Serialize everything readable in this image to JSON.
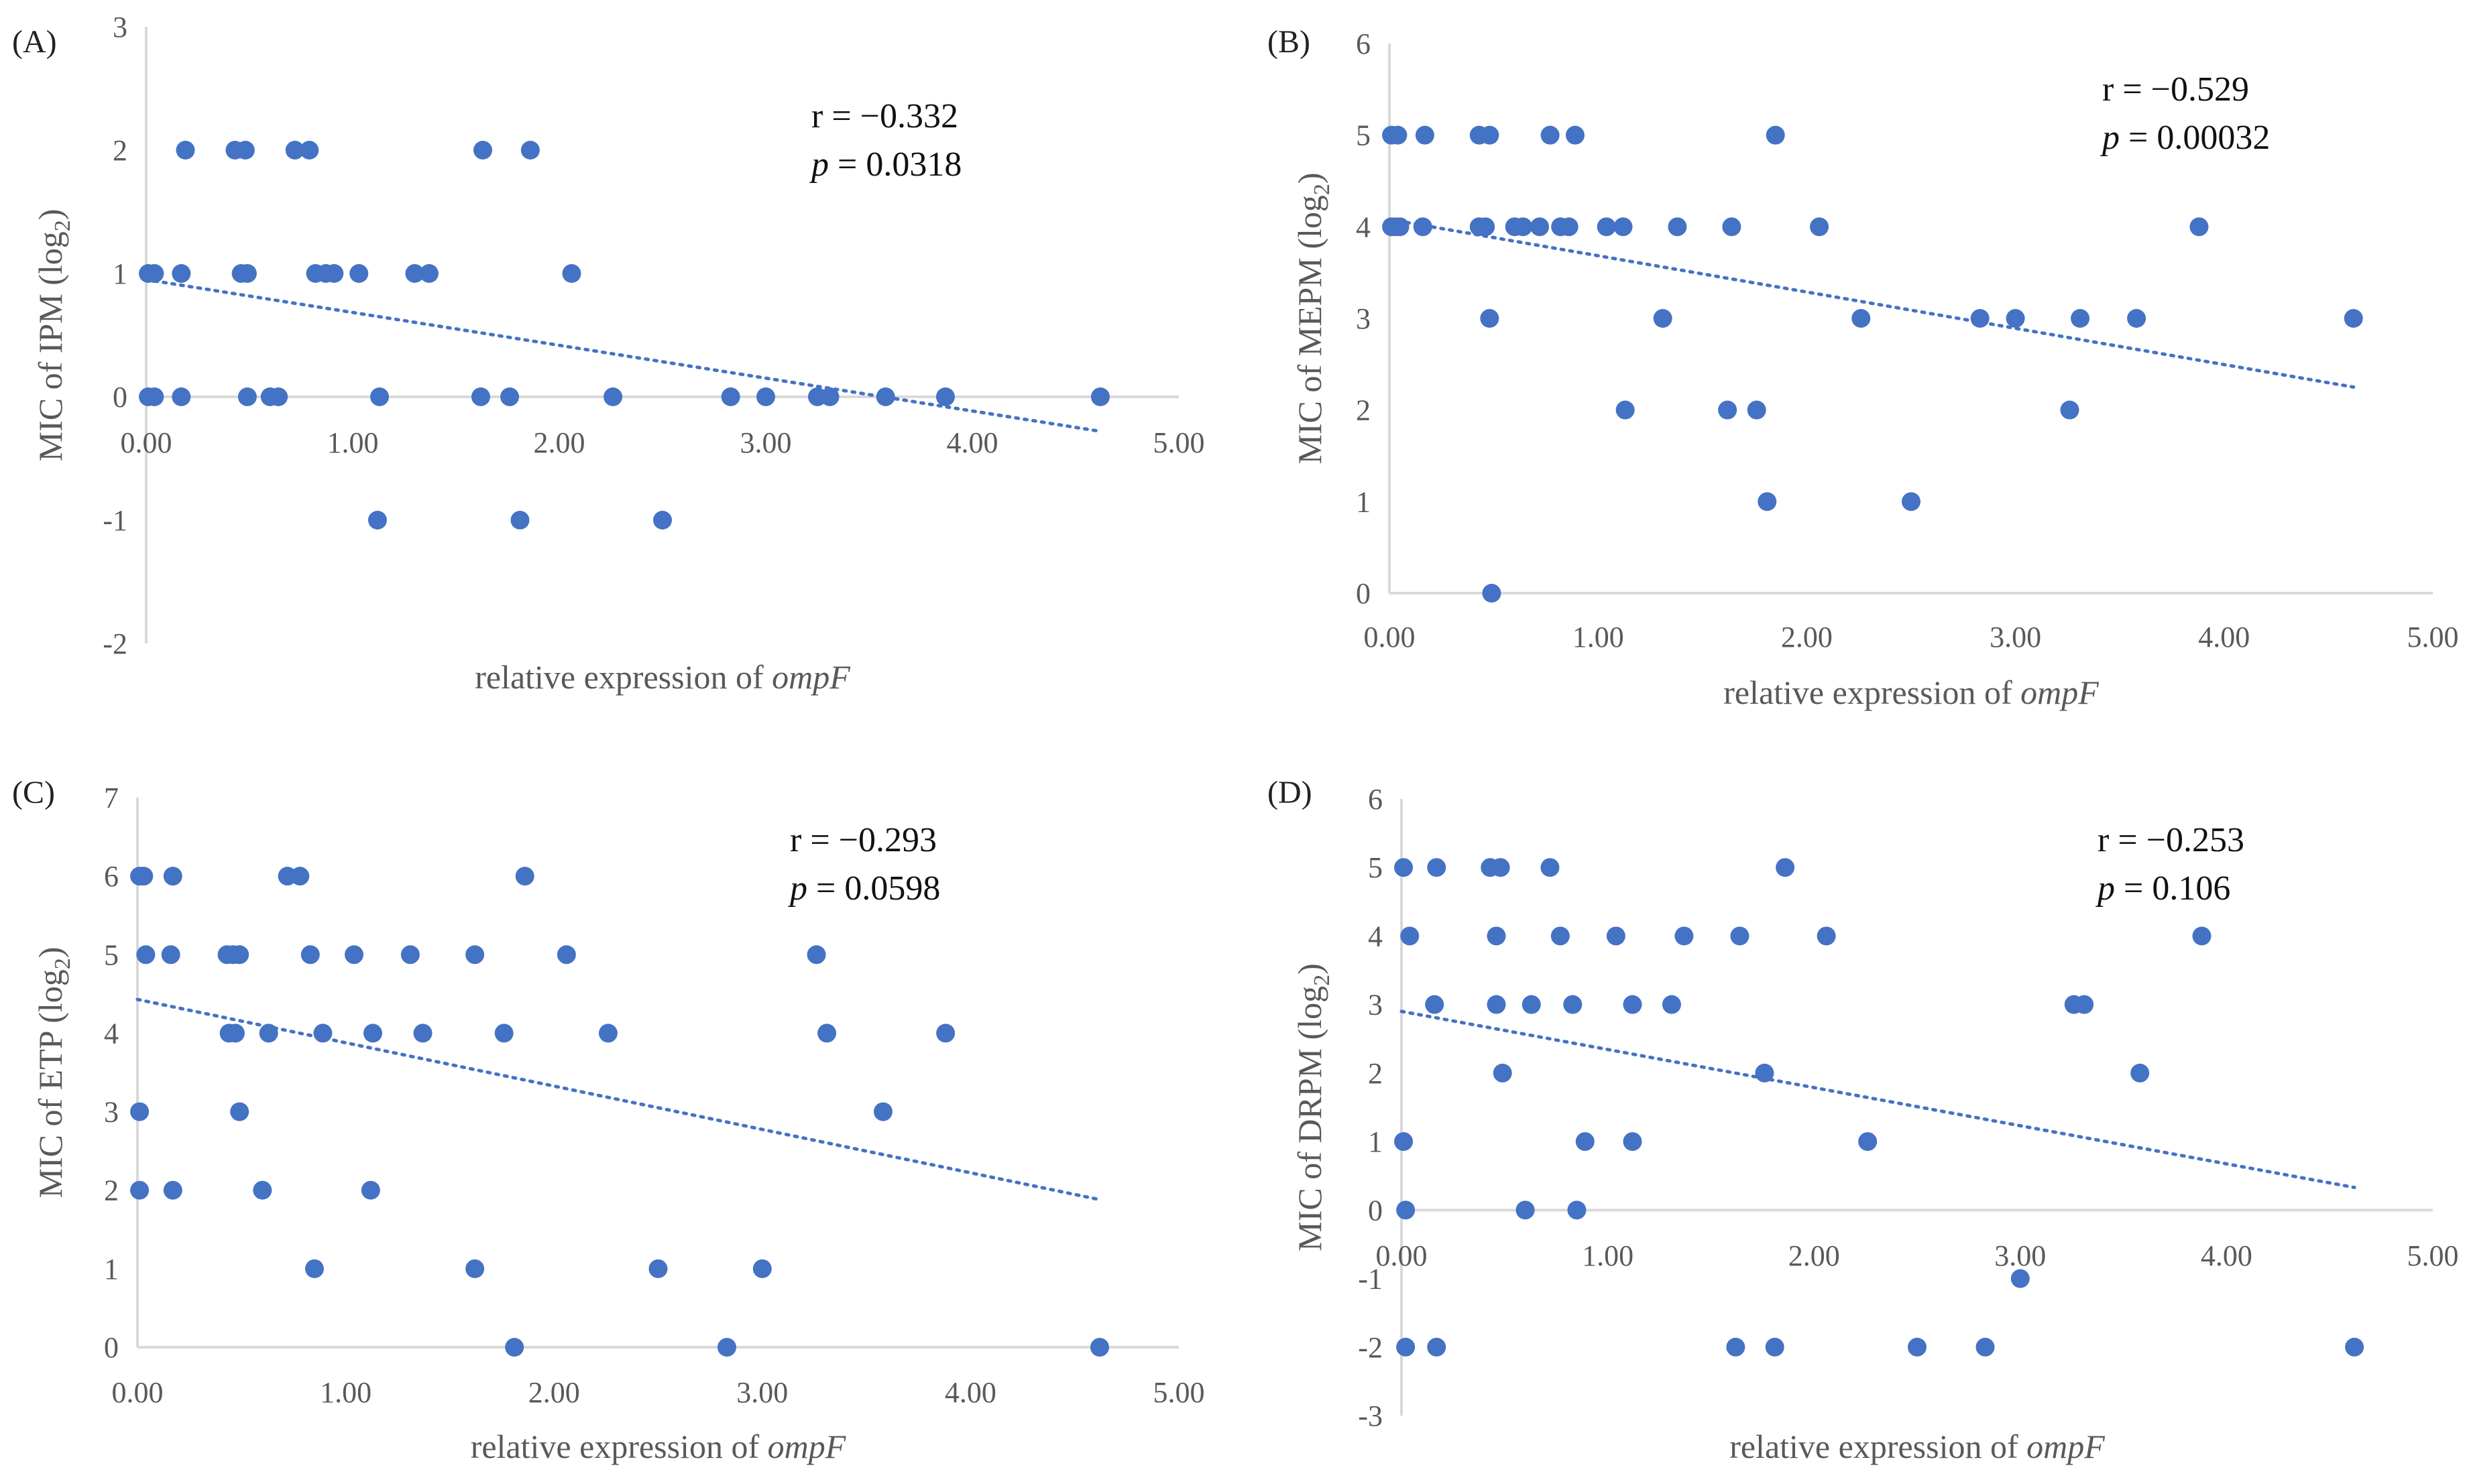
{
  "figure": {
    "colors": {
      "marker": "#4472c4",
      "trendline": "#4472c4",
      "axis": "#d9d9d9"
    }
  },
  "chart_data": [
    {
      "type": "scatter",
      "panel_label": "(A)",
      "xlabel_prefix": "relative expression of ",
      "xlabel_gene": "ompF",
      "ylabel_prefix": "MIC of IPM (log",
      "ylabel_sub": "2",
      "ylabel_suffix": ")",
      "xlim": [
        0,
        5
      ],
      "ylim": [
        -2,
        3
      ],
      "x_tick_labels": [
        "0.00",
        "1.00",
        "2.00",
        "3.00",
        "4.00",
        "5.00"
      ],
      "y_tick_labels": [
        "-2",
        "-1",
        "0",
        "1",
        "2",
        "3"
      ],
      "x_ticks": [
        0,
        1,
        2,
        3,
        4,
        5
      ],
      "y_ticks": [
        -2,
        -1,
        0,
        1,
        2,
        3
      ],
      "x_axis_crossing": 0,
      "r_prefix": "r = ",
      "r_value": "−0.332",
      "p_prefix": "p",
      "p_value": " = 0.0318",
      "trendline": {
        "x": [
          0,
          4.62
        ],
        "y": [
          0.95,
          -0.28
        ]
      },
      "points": [
        [
          0.01,
          1
        ],
        [
          0.04,
          1
        ],
        [
          0.17,
          1
        ],
        [
          0.46,
          1
        ],
        [
          0.49,
          1
        ],
        [
          0.82,
          1
        ],
        [
          0.87,
          1
        ],
        [
          0.91,
          1
        ],
        [
          1.03,
          1
        ],
        [
          1.3,
          1
        ],
        [
          1.37,
          1
        ],
        [
          2.06,
          1
        ],
        [
          0.19,
          2
        ],
        [
          0.43,
          2
        ],
        [
          0.48,
          2
        ],
        [
          0.72,
          2
        ],
        [
          0.79,
          2
        ],
        [
          1.63,
          2
        ],
        [
          1.86,
          2
        ],
        [
          0.01,
          0
        ],
        [
          0.04,
          0
        ],
        [
          0.17,
          0
        ],
        [
          0.49,
          0
        ],
        [
          0.6,
          0
        ],
        [
          0.64,
          0
        ],
        [
          1.13,
          0
        ],
        [
          1.62,
          0
        ],
        [
          1.76,
          0
        ],
        [
          2.26,
          0
        ],
        [
          2.83,
          0
        ],
        [
          3.0,
          0
        ],
        [
          3.25,
          0
        ],
        [
          3.31,
          0
        ],
        [
          3.58,
          0
        ],
        [
          3.87,
          0
        ],
        [
          4.62,
          0
        ],
        [
          1.12,
          -1
        ],
        [
          1.81,
          -1
        ],
        [
          2.5,
          -1
        ]
      ]
    },
    {
      "type": "scatter",
      "panel_label": "(B)",
      "xlabel_prefix": "relative expression of ",
      "xlabel_gene": "ompF",
      "ylabel_prefix": "MIC of MEPM (log",
      "ylabel_sub": "2",
      "ylabel_suffix": ")",
      "xlim": [
        0,
        5
      ],
      "ylim": [
        0,
        6
      ],
      "x_tick_labels": [
        "0.00",
        "1.00",
        "2.00",
        "3.00",
        "4.00",
        "5.00"
      ],
      "y_tick_labels": [
        "0",
        "1",
        "2",
        "3",
        "4",
        "5",
        "6"
      ],
      "x_ticks": [
        0,
        1,
        2,
        3,
        4,
        5
      ],
      "y_ticks": [
        0,
        1,
        2,
        3,
        4,
        5,
        6
      ],
      "x_axis_crossing": 0,
      "r_prefix": "r = ",
      "r_value": "−0.529",
      "p_prefix": "p",
      "p_value": " = 0.00032",
      "trendline": {
        "x": [
          0,
          4.62
        ],
        "y": [
          4.08,
          2.25
        ]
      },
      "points": [
        [
          0.01,
          5
        ],
        [
          0.04,
          5
        ],
        [
          0.17,
          5
        ],
        [
          0.43,
          5
        ],
        [
          0.48,
          5
        ],
        [
          0.77,
          5
        ],
        [
          0.89,
          5
        ],
        [
          1.85,
          5
        ],
        [
          0.01,
          4
        ],
        [
          0.03,
          4
        ],
        [
          0.05,
          4
        ],
        [
          0.16,
          4
        ],
        [
          0.43,
          4
        ],
        [
          0.46,
          4
        ],
        [
          0.6,
          4
        ],
        [
          0.64,
          4
        ],
        [
          0.72,
          4
        ],
        [
          0.82,
          4
        ],
        [
          0.86,
          4
        ],
        [
          1.04,
          4
        ],
        [
          1.12,
          4
        ],
        [
          1.38,
          4
        ],
        [
          1.64,
          4
        ],
        [
          2.06,
          4
        ],
        [
          3.88,
          4
        ],
        [
          0.48,
          3
        ],
        [
          1.31,
          3
        ],
        [
          2.26,
          3
        ],
        [
          2.83,
          3
        ],
        [
          3.0,
          3
        ],
        [
          3.31,
          3
        ],
        [
          3.58,
          3
        ],
        [
          4.62,
          3
        ],
        [
          1.13,
          2
        ],
        [
          1.62,
          2
        ],
        [
          1.76,
          2
        ],
        [
          3.26,
          2
        ],
        [
          1.81,
          1
        ],
        [
          2.5,
          1
        ],
        [
          0.49,
          0
        ]
      ]
    },
    {
      "type": "scatter",
      "panel_label": "(C)",
      "xlabel_prefix": "relative expression of ",
      "xlabel_gene": "ompF",
      "ylabel_prefix": "MIC of ETP (log",
      "ylabel_sub": "2",
      "ylabel_suffix": ")",
      "xlim": [
        0,
        5
      ],
      "ylim": [
        0,
        7
      ],
      "x_tick_labels": [
        "0.00",
        "1.00",
        "2.00",
        "3.00",
        "4.00",
        "5.00"
      ],
      "y_tick_labels": [
        "0",
        "1",
        "2",
        "3",
        "4",
        "5",
        "6",
        "7"
      ],
      "x_ticks": [
        0,
        1,
        2,
        3,
        4,
        5
      ],
      "y_ticks": [
        0,
        1,
        2,
        3,
        4,
        5,
        6,
        7
      ],
      "x_axis_crossing": 0,
      "r_prefix": "r = ",
      "r_value": "−0.293",
      "p_prefix": "p",
      "p_value": " = 0.0598",
      "trendline": {
        "x": [
          0,
          4.62
        ],
        "y": [
          4.43,
          1.88
        ]
      },
      "points": [
        [
          0.01,
          6
        ],
        [
          0.03,
          6
        ],
        [
          0.17,
          6
        ],
        [
          0.72,
          6
        ],
        [
          0.78,
          6
        ],
        [
          1.86,
          6
        ],
        [
          0.04,
          5
        ],
        [
          0.16,
          5
        ],
        [
          0.43,
          5
        ],
        [
          0.46,
          5
        ],
        [
          0.49,
          5
        ],
        [
          0.83,
          5
        ],
        [
          1.04,
          5
        ],
        [
          1.31,
          5
        ],
        [
          1.62,
          5
        ],
        [
          2.06,
          5
        ],
        [
          3.26,
          5
        ],
        [
          0.44,
          4
        ],
        [
          0.47,
          4
        ],
        [
          0.63,
          4
        ],
        [
          0.89,
          4
        ],
        [
          1.13,
          4
        ],
        [
          1.37,
          4
        ],
        [
          1.76,
          4
        ],
        [
          2.26,
          4
        ],
        [
          3.31,
          4
        ],
        [
          3.88,
          4
        ],
        [
          0.01,
          3
        ],
        [
          0.49,
          3
        ],
        [
          3.58,
          3
        ],
        [
          0.01,
          2
        ],
        [
          0.17,
          2
        ],
        [
          0.6,
          2
        ],
        [
          1.12,
          2
        ],
        [
          0.85,
          1
        ],
        [
          1.62,
          1
        ],
        [
          2.5,
          1
        ],
        [
          3.0,
          1
        ],
        [
          1.81,
          0
        ],
        [
          2.83,
          0
        ],
        [
          4.62,
          0
        ]
      ]
    },
    {
      "type": "scatter",
      "panel_label": "(D)",
      "xlabel_prefix": "relative expression of ",
      "xlabel_gene": "ompF",
      "ylabel_prefix": "MIC of DRPM (log",
      "ylabel_sub": "2",
      "ylabel_suffix": ")",
      "xlim": [
        0,
        5
      ],
      "ylim": [
        -3,
        6
      ],
      "x_tick_labels": [
        "0.00",
        "1.00",
        "2.00",
        "3.00",
        "4.00",
        "5.00"
      ],
      "y_tick_labels": [
        "-3",
        "-2",
        "-1",
        "0",
        "1",
        "2",
        "3",
        "4",
        "5",
        "6"
      ],
      "x_ticks": [
        0,
        1,
        2,
        3,
        4,
        5
      ],
      "y_ticks": [
        -3,
        -2,
        -1,
        0,
        1,
        2,
        3,
        4,
        5,
        6
      ],
      "x_axis_crossing": 0,
      "r_prefix": "r = ",
      "r_value": "−0.253",
      "p_prefix": "p",
      "p_value": " = 0.106",
      "trendline": {
        "x": [
          0,
          4.62
        ],
        "y": [
          2.9,
          0.33
        ]
      },
      "points": [
        [
          0.01,
          5
        ],
        [
          0.17,
          5
        ],
        [
          0.43,
          5
        ],
        [
          0.48,
          5
        ],
        [
          0.72,
          5
        ],
        [
          1.86,
          5
        ],
        [
          0.04,
          4
        ],
        [
          0.46,
          4
        ],
        [
          0.77,
          4
        ],
        [
          1.04,
          4
        ],
        [
          1.37,
          4
        ],
        [
          1.64,
          4
        ],
        [
          2.06,
          4
        ],
        [
          3.88,
          4
        ],
        [
          0.16,
          3
        ],
        [
          0.46,
          3
        ],
        [
          0.63,
          3
        ],
        [
          0.83,
          3
        ],
        [
          1.12,
          3
        ],
        [
          1.31,
          3
        ],
        [
          3.26,
          3
        ],
        [
          3.31,
          3
        ],
        [
          0.49,
          2
        ],
        [
          1.76,
          2
        ],
        [
          3.58,
          2
        ],
        [
          0.01,
          1
        ],
        [
          0.89,
          1
        ],
        [
          1.12,
          1
        ],
        [
          2.26,
          1
        ],
        [
          0.02,
          0
        ],
        [
          0.6,
          0
        ],
        [
          0.85,
          0
        ],
        [
          3.0,
          -1
        ],
        [
          0.02,
          -2
        ],
        [
          0.17,
          -2
        ],
        [
          1.62,
          -2
        ],
        [
          1.81,
          -2
        ],
        [
          2.5,
          -2
        ],
        [
          2.83,
          -2
        ],
        [
          4.62,
          -2
        ]
      ]
    }
  ]
}
